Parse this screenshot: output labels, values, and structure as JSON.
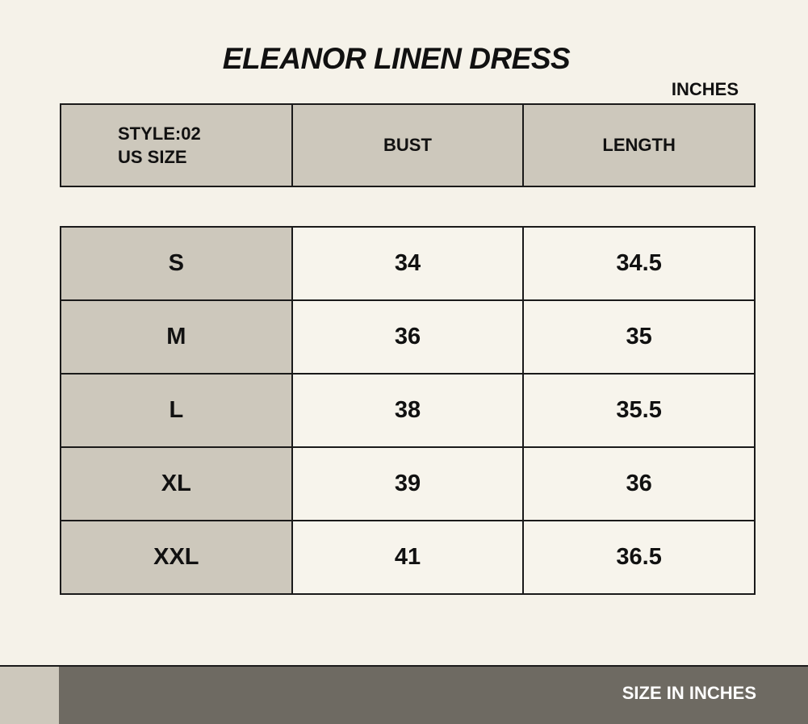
{
  "header": {
    "title": "ELEANOR LINEN DRESS",
    "unit": "INCHES",
    "columns": [
      [
        "STYLE:02",
        "US SIZE"
      ],
      "BUST",
      "LENGTH"
    ]
  },
  "table": {
    "rows": [
      [
        "S",
        34,
        34.5
      ],
      [
        "M",
        36,
        35
      ],
      [
        "L",
        38,
        35.5
      ],
      [
        "XL",
        39,
        36
      ],
      [
        "XXL",
        41,
        36.5
      ]
    ]
  },
  "footer": {
    "text": "SIZE IN INCHES"
  }
}
